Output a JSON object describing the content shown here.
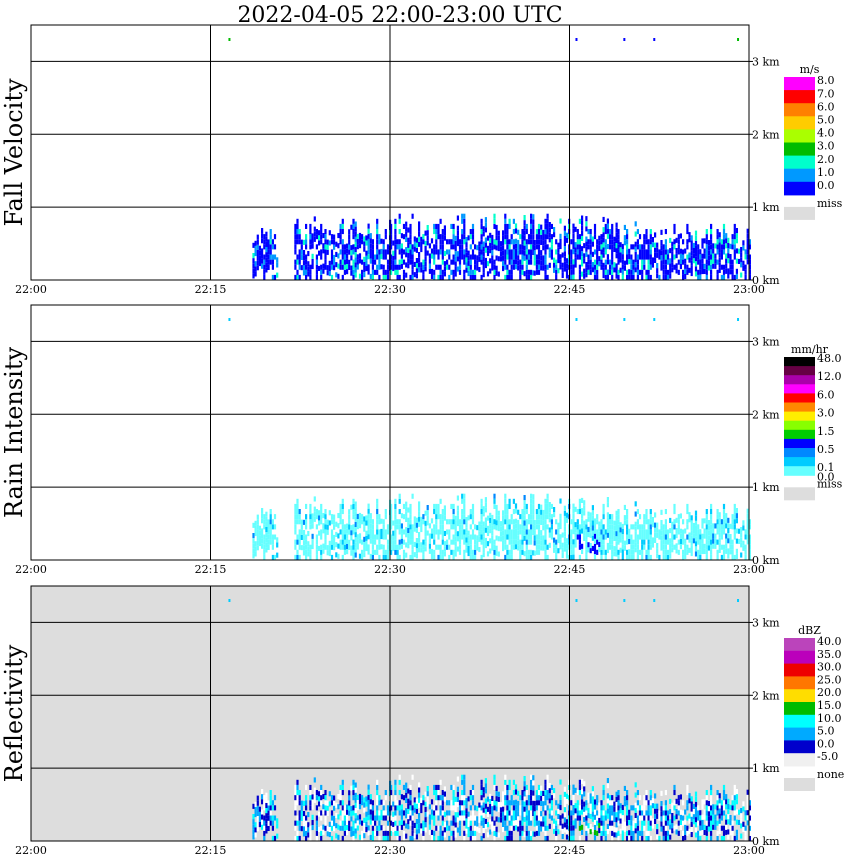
{
  "title": "2022-04-05   22:00-23:00 UTC",
  "x_ticks": [
    "22:00",
    "22:15",
    "22:30",
    "22:45",
    "23:00"
  ],
  "y_ticks": [
    "0 km",
    "1 km",
    "2 km",
    "3 km"
  ],
  "panels": [
    {
      "ylabel": "Fall Velocity",
      "cb_unit": "m/s",
      "cb_labels": [
        "8.0",
        "7.0",
        "6.0",
        "5.0",
        "4.0",
        "3.0",
        "2.0",
        "1.0",
        "0.0"
      ],
      "miss_label": "miss",
      "background": "#ffffff"
    },
    {
      "ylabel": "Rain Intensity",
      "cb_unit": "mm/hr",
      "cb_labels": [
        "48.0",
        "",
        "12.0",
        "",
        "6.0",
        "",
        "3.0",
        "",
        "1.5",
        "",
        "0.5",
        "",
        "0.1"
      ],
      "cb_extra": "0.0",
      "miss_label": "miss",
      "background": "#ffffff"
    },
    {
      "ylabel": "Reflectivity",
      "cb_unit": "dBZ",
      "cb_labels": [
        "40.0",
        "35.0",
        "30.0",
        "25.0",
        "20.0",
        "15.0",
        "10.0",
        "5.0",
        "0.0",
        "-5.0"
      ],
      "miss_label": "none",
      "background": "#dddddd"
    }
  ],
  "colors": {
    "fall_velocity": [
      "#ff00ff",
      "#ff0000",
      "#ff8000",
      "#ffcc00",
      "#aaff00",
      "#00bb00",
      "#00ffcc",
      "#0099ff",
      "#0000ff"
    ],
    "rain_intensity": [
      "#000000",
      "#660044",
      "#aa00aa",
      "#ff00ff",
      "#ff0000",
      "#ff8800",
      "#ffee00",
      "#88ff00",
      "#00cc00",
      "#0000ff",
      "#0088ff",
      "#00ccff",
      "#66ffff"
    ],
    "reflectivity": [
      "#bb44bb",
      "#bb00bb",
      "#ee0000",
      "#ff7700",
      "#ffdd00",
      "#00bb00",
      "#00ffff",
      "#00aaff",
      "#0000cc",
      "#f0f0f0"
    ],
    "missing": "#dddddd"
  },
  "chart_data": {
    "type": "heatmap",
    "title": "2022-04-05   22:00-23:00 UTC",
    "x_range": [
      "22:00",
      "23:00"
    ],
    "y_range_km": [
      0,
      3.5
    ],
    "series": [
      {
        "name": "Fall Velocity",
        "unit": "m/s",
        "typical_value": 1.0
      },
      {
        "name": "Rain Intensity",
        "unit": "mm/hr",
        "typical_value": 0.1
      },
      {
        "name": "Reflectivity",
        "unit": "dBZ",
        "typical_value": 5.0
      }
    ],
    "precip_regions_time_min": [
      {
        "start": 18.5,
        "end": 20.5,
        "top_km": 0.7
      },
      {
        "start": 22,
        "end": 30,
        "top_km": 0.85
      },
      {
        "start": 30,
        "end": 42,
        "top_km": 0.9
      },
      {
        "start": 42,
        "end": 49,
        "top_km": 0.85
      },
      {
        "start": 49,
        "end": 60,
        "top_km": 0.75
      }
    ]
  }
}
